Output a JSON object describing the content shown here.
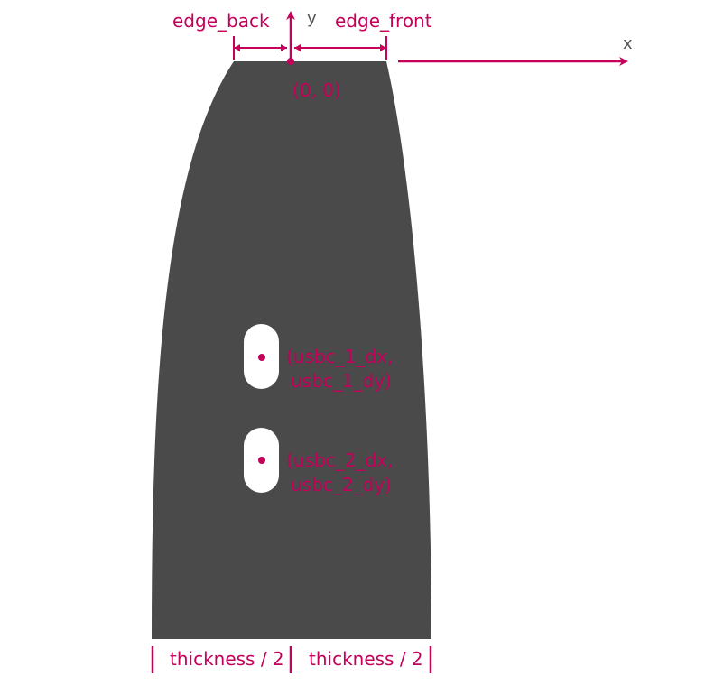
{
  "colors": {
    "accent": "#c4005a",
    "body": "#4a4a4a",
    "axis_text": "#555555",
    "background": "#ffffff"
  },
  "axes": {
    "x_label": "x",
    "y_label": "y"
  },
  "labels": {
    "edge_back": "edge_back",
    "edge_front": "edge_front",
    "origin": "(0, 0)",
    "usbc_1_line1": "(usbc_1_dx,",
    "usbc_1_line2": "usbc_1_dy)",
    "usbc_2_line1": "(usbc_2_dx,",
    "usbc_2_line2": "usbc_2_dy)",
    "thickness_left": "thickness / 2",
    "thickness_right": "thickness / 2"
  }
}
